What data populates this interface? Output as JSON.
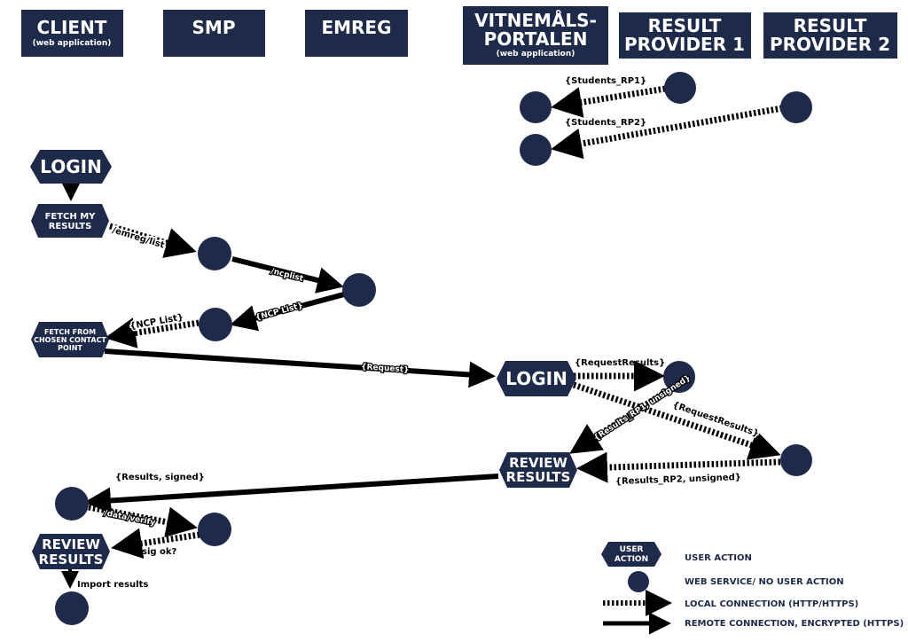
{
  "colors": {
    "navy": "#1e2a4a",
    "black": "#000000",
    "white": "#ffffff"
  },
  "lanes": [
    {
      "title": "CLIENT",
      "subtitle": "(web application)"
    },
    {
      "title": "SMP",
      "subtitle": ""
    },
    {
      "title": "EMREG",
      "subtitle": ""
    },
    {
      "title_line1": "VITNEMÅLS-",
      "title_line2": "PORTALEN",
      "subtitle": "(web application)"
    },
    {
      "title_line1": "RESULT",
      "title_line2": "PROVIDER 1",
      "subtitle": ""
    },
    {
      "title_line1": "RESULT",
      "title_line2": "PROVIDER 2",
      "subtitle": ""
    }
  ],
  "actions": {
    "login_client": "LOGIN",
    "fetch_my_results": [
      "FETCH MY",
      "RESULTS"
    ],
    "fetch_from_contact_point": [
      "FETCH FROM",
      "CHOSEN CONTACT",
      "POINT"
    ],
    "login_portal": "LOGIN",
    "review_results_portal": [
      "REVIEW",
      "RESULTS"
    ],
    "review_results_client": [
      "REVIEW",
      "RESULTS"
    ]
  },
  "connection_labels": {
    "students_rp1": "{Students_RP1}",
    "students_rp2": "{Students_RP2}",
    "emreg_list": "/emreg/list",
    "ncplist": "/ncplist",
    "ncp_list_return": "{NCP List}",
    "ncp_list_client": "{NCP List}",
    "request": "{Request}",
    "request_results_rp1": "{RequestResults}",
    "request_results_rp2": "{RequestResults}",
    "results_rp1_unsigned": "{Results_RP1, unsigned}",
    "results_rp2_unsigned": "{Results_RP2, unsigned}",
    "results_signed": "{Results, signed}",
    "data_verify": "/data/verify",
    "sig_ok": "sig ok?",
    "import_results": "Import results"
  },
  "legend": {
    "user_action_box_line1": "USER",
    "user_action_box_line2": "ACTION",
    "user_action": "USER ACTION",
    "web_service": "WEB SERVICE/ NO USER ACTION",
    "local_connection": "LOCAL CONNECTION (HTTP/HTTPS)",
    "remote_connection": "REMOTE CONNECTION, ENCRYPTED (HTTPS)"
  }
}
